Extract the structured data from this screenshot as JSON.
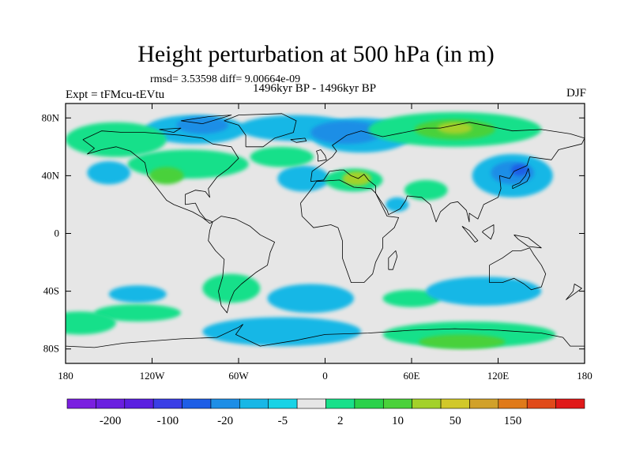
{
  "title": "Height perturbation at 500 hPa (in m)",
  "stats": "rmsd= 3.53598 diff= 9.00664e-09",
  "left_label": "Expt = tFMcu-tEVtu",
  "center_label": "1496kyr BP - 1496kyr BP",
  "right_label": "DJF",
  "map": {
    "lon_range": [
      -180,
      180
    ],
    "lat_range": [
      -90,
      90
    ],
    "lon_ticks": [
      "180",
      "120W",
      "60W",
      "0",
      "60E",
      "120E",
      "180"
    ],
    "lat_ticks": [
      "80N",
      "40N",
      "0",
      "40S",
      "80S"
    ],
    "background_color": "#e6e6e6",
    "field": [
      {
        "name": "arctic-canada",
        "lon": -90,
        "lat": 72,
        "rx": 35,
        "ry": 10,
        "color": "#19b7e6"
      },
      {
        "name": "arctic-canada-core",
        "lon": -85,
        "lat": 75,
        "rx": 18,
        "ry": 6,
        "color": "#1e8ee6"
      },
      {
        "name": "north-atlantic",
        "lon": -20,
        "lat": 73,
        "rx": 40,
        "ry": 9,
        "color": "#19b7e6"
      },
      {
        "name": "siberia",
        "lon": 25,
        "lat": 68,
        "rx": 35,
        "ry": 12,
        "color": "#19b7e6"
      },
      {
        "name": "siberia-core",
        "lon": 15,
        "lat": 70,
        "rx": 25,
        "ry": 8,
        "color": "#1e8ee6"
      },
      {
        "name": "central-asia-pos",
        "lon": 90,
        "lat": 72,
        "rx": 60,
        "ry": 12,
        "color": "#19e08a"
      },
      {
        "name": "central-asia-pos-core",
        "lon": 90,
        "lat": 72,
        "rx": 28,
        "ry": 7,
        "color": "#4ad13a"
      },
      {
        "name": "central-asia-pos-peak",
        "lon": 90,
        "lat": 73,
        "rx": 12,
        "ry": 4,
        "color": "#a3d12a"
      },
      {
        "name": "east-asia",
        "lon": 130,
        "lat": 40,
        "rx": 28,
        "ry": 15,
        "color": "#19b7e6"
      },
      {
        "name": "east-asia-core",
        "lon": 130,
        "lat": 42,
        "rx": 15,
        "ry": 8,
        "color": "#1e8ee6"
      },
      {
        "name": "east-asia-peak",
        "lon": 135,
        "lat": 44,
        "rx": 6,
        "ry": 4,
        "color": "#1e5ee6"
      },
      {
        "name": "north-pacific-pos",
        "lon": -145,
        "lat": 65,
        "rx": 35,
        "ry": 12,
        "color": "#19e08a"
      },
      {
        "name": "north-america-pos",
        "lon": -95,
        "lat": 48,
        "rx": 42,
        "ry": 10,
        "color": "#19e08a"
      },
      {
        "name": "north-america-pos-core",
        "lon": -110,
        "lat": 40,
        "rx": 12,
        "ry": 6,
        "color": "#4ad13a"
      },
      {
        "name": "east-pacific-neg",
        "lon": -150,
        "lat": 42,
        "rx": 15,
        "ry": 8,
        "color": "#19b7e6"
      },
      {
        "name": "atlantic-neg",
        "lon": -15,
        "lat": 38,
        "rx": 18,
        "ry": 9,
        "color": "#19b7e6"
      },
      {
        "name": "europe-pos",
        "lon": -30,
        "lat": 53,
        "rx": 22,
        "ry": 7,
        "color": "#19e08a"
      },
      {
        "name": "mediterranean-pos",
        "lon": 20,
        "lat": 37,
        "rx": 20,
        "ry": 8,
        "color": "#19e08a"
      },
      {
        "name": "mediterranean-core",
        "lon": 22,
        "lat": 38,
        "rx": 10,
        "ry": 5,
        "color": "#a3d12a"
      },
      {
        "name": "middle-east-pos",
        "lon": 70,
        "lat": 30,
        "rx": 15,
        "ry": 7,
        "color": "#19e08a"
      },
      {
        "name": "africa-neg",
        "lon": 50,
        "lat": 20,
        "rx": 8,
        "ry": 5,
        "color": "#19b7e6"
      },
      {
        "name": "south-pacific-neg",
        "lon": -130,
        "lat": -42,
        "rx": 20,
        "ry": 6,
        "color": "#19b7e6"
      },
      {
        "name": "south-pacific-pos",
        "lon": -130,
        "lat": -55,
        "rx": 30,
        "ry": 6,
        "color": "#19e08a"
      },
      {
        "name": "south-pacific-pos2",
        "lon": -170,
        "lat": -62,
        "rx": 25,
        "ry": 8,
        "color": "#19e08a"
      },
      {
        "name": "south-america-pos",
        "lon": -65,
        "lat": -38,
        "rx": 20,
        "ry": 10,
        "color": "#19e08a"
      },
      {
        "name": "south-atlantic-neg",
        "lon": -10,
        "lat": -45,
        "rx": 30,
        "ry": 10,
        "color": "#19b7e6"
      },
      {
        "name": "south-indian-pos",
        "lon": 60,
        "lat": -45,
        "rx": 20,
        "ry": 6,
        "color": "#19e08a"
      },
      {
        "name": "south-indian-neg",
        "lon": 110,
        "lat": -40,
        "rx": 40,
        "ry": 10,
        "color": "#19b7e6"
      },
      {
        "name": "southern-ocean-neg",
        "lon": -30,
        "lat": -68,
        "rx": 55,
        "ry": 10,
        "color": "#19b7e6"
      },
      {
        "name": "southern-ocean-pos",
        "lon": 100,
        "lat": -70,
        "rx": 60,
        "ry": 9,
        "color": "#19e08a"
      },
      {
        "name": "southern-ocean-pos-core",
        "lon": 95,
        "lat": -75,
        "rx": 30,
        "ry": 5,
        "color": "#4ad13a"
      }
    ]
  },
  "colorbar": {
    "colors": [
      "#7a1fe0",
      "#6a1fe0",
      "#5a1fe0",
      "#3a3ee6",
      "#1e5ee6",
      "#1e8ee6",
      "#19b7e6",
      "#19d3e6",
      "#e6e6e6",
      "#19e08a",
      "#2ad14a",
      "#4ad13a",
      "#a3d12a",
      "#d1c82a",
      "#d1a12a",
      "#e07a1a",
      "#e04a1a",
      "#e01a1a"
    ],
    "labels": [
      "-200",
      "-100",
      "-20",
      "-5",
      "2",
      "10",
      "50",
      "150"
    ]
  },
  "coastlines": [
    {
      "name": "north-america",
      "pts": [
        [
          -168,
          65
        ],
        [
          -155,
          71
        ],
        [
          -140,
          70
        ],
        [
          -125,
          70
        ],
        [
          -100,
          68
        ],
        [
          -85,
          66
        ],
        [
          -78,
          62
        ],
        [
          -65,
          60
        ],
        [
          -60,
          52
        ],
        [
          -67,
          45
        ],
        [
          -75,
          39
        ],
        [
          -81,
          31
        ],
        [
          -80,
          25
        ],
        [
          -83,
          29
        ],
        [
          -90,
          30
        ],
        [
          -97,
          27
        ],
        [
          -97,
          20
        ],
        [
          -90,
          21
        ],
        [
          -87,
          15
        ],
        [
          -83,
          10
        ],
        [
          -78,
          8
        ],
        [
          -80,
          7
        ],
        [
          -85,
          11
        ],
        [
          -92,
          15
        ],
        [
          -105,
          20
        ],
        [
          -110,
          23
        ],
        [
          -117,
          32
        ],
        [
          -123,
          40
        ],
        [
          -125,
          49
        ],
        [
          -135,
          57
        ],
        [
          -145,
          60
        ],
        [
          -155,
          58
        ],
        [
          -165,
          55
        ],
        [
          -160,
          59
        ],
        [
          -168,
          65
        ]
      ]
    },
    {
      "name": "greenland",
      "pts": [
        [
          -55,
          60
        ],
        [
          -43,
          60
        ],
        [
          -35,
          66
        ],
        [
          -22,
          70
        ],
        [
          -20,
          78
        ],
        [
          -30,
          83
        ],
        [
          -60,
          82
        ],
        [
          -70,
          78
        ],
        [
          -60,
          75
        ],
        [
          -55,
          68
        ],
        [
          -55,
          60
        ]
      ]
    },
    {
      "name": "south-america",
      "pts": [
        [
          -78,
          8
        ],
        [
          -72,
          12
        ],
        [
          -62,
          10
        ],
        [
          -52,
          5
        ],
        [
          -45,
          -1
        ],
        [
          -35,
          -6
        ],
        [
          -38,
          -13
        ],
        [
          -40,
          -22
        ],
        [
          -48,
          -27
        ],
        [
          -58,
          -35
        ],
        [
          -63,
          -40
        ],
        [
          -66,
          -47
        ],
        [
          -68,
          -55
        ],
        [
          -72,
          -50
        ],
        [
          -74,
          -40
        ],
        [
          -71,
          -30
        ],
        [
          -70,
          -18
        ],
        [
          -76,
          -12
        ],
        [
          -81,
          -5
        ],
        [
          -80,
          2
        ],
        [
          -78,
          8
        ]
      ]
    },
    {
      "name": "eurasia",
      "pts": [
        [
          -10,
          36
        ],
        [
          -9,
          43
        ],
        [
          -2,
          48
        ],
        [
          5,
          53
        ],
        [
          8,
          57
        ],
        [
          5,
          61
        ],
        [
          15,
          68
        ],
        [
          25,
          71
        ],
        [
          40,
          67
        ],
        [
          55,
          70
        ],
        [
          70,
          73
        ],
        [
          80,
          73
        ],
        [
          100,
          77
        ],
        [
          115,
          74
        ],
        [
          130,
          71
        ],
        [
          150,
          72
        ],
        [
          170,
          69
        ],
        [
          180,
          66
        ],
        [
          178,
          62
        ],
        [
          162,
          58
        ],
        [
          157,
          51
        ],
        [
          142,
          53
        ],
        [
          140,
          47
        ],
        [
          131,
          43
        ],
        [
          128,
          38
        ],
        [
          121,
          40
        ],
        [
          122,
          31
        ],
        [
          120,
          25
        ],
        [
          110,
          20
        ],
        [
          106,
          10
        ],
        [
          100,
          14
        ],
        [
          100,
          8
        ],
        [
          98,
          16
        ],
        [
          92,
          22
        ],
        [
          87,
          21
        ],
        [
          80,
          15
        ],
        [
          77,
          8
        ],
        [
          73,
          20
        ],
        [
          67,
          25
        ],
        [
          57,
          26
        ],
        [
          56,
          23
        ],
        [
          52,
          17
        ],
        [
          44,
          13
        ],
        [
          43,
          16
        ],
        [
          35,
          28
        ],
        [
          35,
          33
        ],
        [
          30,
          37
        ],
        [
          27,
          41
        ],
        [
          23,
          38
        ],
        [
          18,
          40
        ],
        [
          13,
          44
        ],
        [
          10,
          44
        ],
        [
          3,
          43
        ],
        [
          -1,
          37
        ],
        [
          -10,
          36
        ]
      ]
    },
    {
      "name": "africa",
      "pts": [
        [
          -17,
          21
        ],
        [
          -10,
          30
        ],
        [
          -6,
          36
        ],
        [
          10,
          37
        ],
        [
          20,
          32
        ],
        [
          32,
          31
        ],
        [
          35,
          28
        ],
        [
          43,
          12
        ],
        [
          51,
          11
        ],
        [
          48,
          4
        ],
        [
          40,
          -3
        ],
        [
          40,
          -10
        ],
        [
          35,
          -20
        ],
        [
          33,
          -28
        ],
        [
          27,
          -34
        ],
        [
          18,
          -34
        ],
        [
          12,
          -17
        ],
        [
          12,
          -5
        ],
        [
          9,
          4
        ],
        [
          4,
          6
        ],
        [
          -8,
          4
        ],
        [
          -16,
          12
        ],
        [
          -17,
          21
        ]
      ]
    },
    {
      "name": "australia",
      "pts": [
        [
          114,
          -22
        ],
        [
          114,
          -34
        ],
        [
          123,
          -34
        ],
        [
          131,
          -31
        ],
        [
          138,
          -35
        ],
        [
          143,
          -39
        ],
        [
          150,
          -37
        ],
        [
          153,
          -28
        ],
        [
          150,
          -22
        ],
        [
          145,
          -15
        ],
        [
          142,
          -10
        ],
        [
          136,
          -12
        ],
        [
          130,
          -12
        ],
        [
          123,
          -17
        ],
        [
          114,
          -22
        ]
      ]
    },
    {
      "name": "uk",
      "pts": [
        [
          -5,
          50
        ],
        [
          1,
          51
        ],
        [
          0,
          54
        ],
        [
          -3,
          58
        ],
        [
          -6,
          57
        ],
        [
          -5,
          54
        ],
        [
          -5,
          50
        ]
      ]
    },
    {
      "name": "madagascar",
      "pts": [
        [
          44,
          -25
        ],
        [
          47,
          -25
        ],
        [
          50,
          -16
        ],
        [
          49,
          -12
        ],
        [
          44,
          -17
        ],
        [
          44,
          -25
        ]
      ]
    },
    {
      "name": "japan",
      "pts": [
        [
          130,
          31
        ],
        [
          136,
          34
        ],
        [
          140,
          36
        ],
        [
          142,
          40
        ],
        [
          141,
          45
        ],
        [
          139,
          40
        ],
        [
          135,
          35
        ],
        [
          130,
          33
        ],
        [
          130,
          31
        ]
      ]
    },
    {
      "name": "borneo",
      "pts": [
        [
          109,
          1
        ],
        [
          115,
          -4
        ],
        [
          117,
          1
        ],
        [
          117,
          6
        ],
        [
          110,
          2
        ],
        [
          109,
          1
        ]
      ]
    },
    {
      "name": "sumatra",
      "pts": [
        [
          95,
          5
        ],
        [
          104,
          -6
        ],
        [
          106,
          -5
        ],
        [
          100,
          2
        ],
        [
          95,
          5
        ]
      ]
    },
    {
      "name": "new-guinea",
      "pts": [
        [
          131,
          -1
        ],
        [
          141,
          -3
        ],
        [
          150,
          -10
        ],
        [
          141,
          -9
        ],
        [
          134,
          -4
        ],
        [
          131,
          -1
        ]
      ]
    },
    {
      "name": "new-zealand",
      "pts": [
        [
          167,
          -46
        ],
        [
          174,
          -41
        ],
        [
          178,
          -38
        ],
        [
          173,
          -35
        ],
        [
          172,
          -40
        ],
        [
          167,
          -46
        ]
      ]
    },
    {
      "name": "antarctica",
      "pts": [
        [
          -180,
          -78
        ],
        [
          -160,
          -79
        ],
        [
          -140,
          -76
        ],
        [
          -100,
          -73
        ],
        [
          -75,
          -72
        ],
        [
          -60,
          -65
        ],
        [
          -57,
          -63
        ],
        [
          -62,
          -70
        ],
        [
          -45,
          -78
        ],
        [
          -20,
          -74
        ],
        [
          0,
          -70
        ],
        [
          30,
          -69
        ],
        [
          60,
          -67
        ],
        [
          90,
          -66
        ],
        [
          120,
          -67
        ],
        [
          150,
          -69
        ],
        [
          165,
          -72
        ],
        [
          170,
          -78
        ],
        [
          180,
          -78
        ]
      ]
    },
    {
      "name": "iceland",
      "pts": [
        [
          -24,
          65
        ],
        [
          -14,
          66
        ],
        [
          -13,
          64
        ],
        [
          -20,
          63
        ],
        [
          -24,
          65
        ]
      ]
    },
    {
      "name": "arctic-island-a",
      "pts": [
        [
          -100,
          78
        ],
        [
          -80,
          81
        ],
        [
          -65,
          82
        ],
        [
          -85,
          76
        ],
        [
          -100,
          78
        ]
      ]
    },
    {
      "name": "arctic-island-b",
      "pts": [
        [
          -115,
          72
        ],
        [
          -100,
          73
        ],
        [
          -105,
          70
        ],
        [
          -115,
          72
        ]
      ]
    }
  ]
}
